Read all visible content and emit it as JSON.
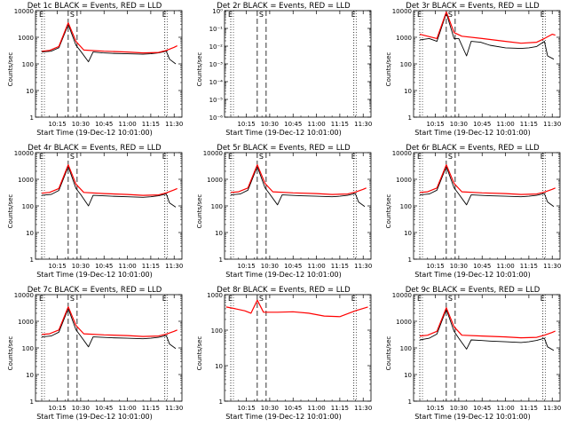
{
  "chart_data": [
    {
      "type": "line",
      "title": "Det 1c BLACK = Events, RED = LLD",
      "xlabel": "Start Time (19-Dec-12 10:01:00)",
      "ylabel": "Counts/sec",
      "yscale": "log",
      "ylim": [
        1,
        10000
      ],
      "ytick_labels": [
        "1",
        "10",
        "100",
        "1000",
        "10000"
      ],
      "xtick_labels": [
        "10:15",
        "10:30",
        "10:45",
        "11:00",
        "11:15",
        "11:30"
      ],
      "markers": [
        {
          "label": "E",
          "time": "10:05"
        },
        {
          "label": "S",
          "time": "10:22"
        },
        {
          "label": "E",
          "time": "11:24"
        }
      ],
      "series": [
        {
          "name": "Events",
          "color": "#000000",
          "x": [
            "10:05",
            "10:11",
            "10:16",
            "10:22",
            "10:27",
            "10:30",
            "10:35",
            "10:38",
            "10:44",
            "10:50",
            "11:00",
            "11:10",
            "11:15",
            "11:20",
            "11:25",
            "11:27",
            "11:31"
          ],
          "y": [
            280,
            300,
            400,
            3000,
            500,
            300,
            120,
            280,
            260,
            250,
            240,
            230,
            240,
            260,
            300,
            150,
            100
          ]
        },
        {
          "name": "LLD",
          "color": "#ff0000",
          "x": [
            "10:05",
            "10:10",
            "10:16",
            "10:22",
            "10:27",
            "10:32",
            "10:45",
            "11:00",
            "11:10",
            "11:20",
            "11:25",
            "11:30",
            "11:32"
          ],
          "y": [
            300,
            320,
            450,
            3500,
            700,
            330,
            300,
            280,
            260,
            270,
            320,
            420,
            480
          ]
        }
      ]
    },
    {
      "type": "line",
      "title": "Det 2r BLACK = Events, RED = LLD",
      "xlabel": "Start Time (19-Dec-12 10:01:00)",
      "ylabel": "Counts/sec",
      "yscale": "log",
      "ylim": [
        1e-06,
        1
      ],
      "ytick_labels": [
        "10⁻⁶",
        "10⁻⁵",
        "10⁻⁴",
        "10⁻³",
        "10⁻²",
        "10⁻¹",
        "10⁰"
      ],
      "xtick_labels": [
        "10:15",
        "10:30",
        "10:45",
        "11:00",
        "11:15",
        "11:30"
      ],
      "markers": [
        {
          "label": "E",
          "time": "10:05"
        },
        {
          "label": "S",
          "time": "10:22"
        },
        {
          "label": "E",
          "time": "11:24"
        }
      ],
      "series": []
    },
    {
      "type": "line",
      "title": "Det 3r BLACK = Events, RED = LLD",
      "xlabel": "Start Time (19-Dec-12 10:01:00)",
      "ylabel": "Counts/sec",
      "yscale": "log",
      "ylim": [
        1,
        10000
      ],
      "ytick_labels": [
        "1",
        "10",
        "100",
        "1000",
        "10000"
      ],
      "xtick_labels": [
        "10:15",
        "10:30",
        "10:45",
        "11:00",
        "11:15",
        "11:30"
      ],
      "markers": [
        {
          "label": "E",
          "time": "10:05"
        },
        {
          "label": "S",
          "time": "10:22"
        },
        {
          "label": "E",
          "time": "11:24"
        }
      ],
      "series": [
        {
          "name": "Events",
          "color": "#000000",
          "x": [
            "10:05",
            "10:11",
            "10:16",
            "10:22",
            "10:27",
            "10:30",
            "10:35",
            "10:38",
            "10:44",
            "10:50",
            "11:00",
            "11:10",
            "11:15",
            "11:20",
            "11:25",
            "11:27",
            "11:31"
          ],
          "y": [
            800,
            900,
            700,
            8000,
            900,
            900,
            200,
            700,
            650,
            500,
            400,
            380,
            400,
            450,
            700,
            200,
            150
          ]
        },
        {
          "name": "LLD",
          "color": "#ff0000",
          "x": [
            "10:05",
            "10:10",
            "10:16",
            "10:22",
            "10:27",
            "10:32",
            "10:45",
            "11:00",
            "11:10",
            "11:20",
            "11:25",
            "11:30",
            "11:32"
          ],
          "y": [
            1300,
            1100,
            900,
            9000,
            1500,
            1100,
            900,
            700,
            600,
            650,
            900,
            1300,
            1200
          ]
        }
      ]
    },
    {
      "type": "line",
      "title": "Det 4r BLACK = Events, RED = LLD",
      "xlabel": "Start Time (19-Dec-12 10:01:00)",
      "ylabel": "Counts/sec",
      "yscale": "log",
      "ylim": [
        1,
        10000
      ],
      "ytick_labels": [
        "1",
        "10",
        "100",
        "1000",
        "10000"
      ],
      "xtick_labels": [
        "10:15",
        "10:30",
        "10:45",
        "11:00",
        "11:15",
        "11:30"
      ],
      "markers": [
        {
          "label": "E",
          "time": "10:05"
        },
        {
          "label": "S",
          "time": "10:22"
        },
        {
          "label": "E",
          "time": "11:24"
        }
      ],
      "series": [
        {
          "name": "Events",
          "color": "#000000",
          "x": [
            "10:05",
            "10:11",
            "10:16",
            "10:22",
            "10:27",
            "10:30",
            "10:35",
            "10:38",
            "10:44",
            "10:50",
            "11:00",
            "11:10",
            "11:15",
            "11:20",
            "11:25",
            "11:27",
            "11:31"
          ],
          "y": [
            250,
            270,
            380,
            3000,
            450,
            270,
            100,
            250,
            240,
            230,
            220,
            210,
            220,
            240,
            280,
            130,
            90
          ]
        },
        {
          "name": "LLD",
          "color": "#ff0000",
          "x": [
            "10:05",
            "10:10",
            "10:16",
            "10:22",
            "10:27",
            "10:32",
            "10:45",
            "11:00",
            "11:10",
            "11:20",
            "11:25",
            "11:30",
            "11:32"
          ],
          "y": [
            300,
            320,
            450,
            3500,
            650,
            320,
            290,
            270,
            250,
            260,
            310,
            400,
            450
          ]
        }
      ]
    },
    {
      "type": "line",
      "title": "Det 5r BLACK = Events, RED = LLD",
      "xlabel": "Start Time (19-Dec-12 10:01:00)",
      "ylabel": "Counts/sec",
      "yscale": "log",
      "ylim": [
        1,
        10000
      ],
      "ytick_labels": [
        "1",
        "10",
        "100",
        "1000",
        "10000"
      ],
      "xtick_labels": [
        "10:15",
        "10:30",
        "10:45",
        "11:00",
        "11:15",
        "11:30"
      ],
      "markers": [
        {
          "label": "E",
          "time": "10:05"
        },
        {
          "label": "S",
          "time": "10:22"
        },
        {
          "label": "E",
          "time": "11:24"
        }
      ],
      "series": [
        {
          "name": "Events",
          "color": "#000000",
          "x": [
            "10:05",
            "10:11",
            "10:16",
            "10:22",
            "10:27",
            "10:30",
            "10:35",
            "10:38",
            "10:44",
            "10:50",
            "11:00",
            "11:10",
            "11:15",
            "11:20",
            "11:25",
            "11:27",
            "11:31"
          ],
          "y": [
            260,
            280,
            390,
            3000,
            480,
            280,
            110,
            260,
            250,
            240,
            230,
            220,
            230,
            250,
            290,
            140,
            95
          ]
        },
        {
          "name": "LLD",
          "color": "#ff0000",
          "x": [
            "10:05",
            "10:10",
            "10:16",
            "10:22",
            "10:27",
            "10:32",
            "10:45",
            "11:00",
            "11:10",
            "11:20",
            "11:25",
            "11:30",
            "11:32"
          ],
          "y": [
            320,
            340,
            470,
            3500,
            700,
            340,
            310,
            290,
            270,
            280,
            330,
            420,
            470
          ]
        }
      ]
    },
    {
      "type": "line",
      "title": "Det 6r BLACK = Events, RED = LLD",
      "xlabel": "Start Time (19-Dec-12 10:01:00)",
      "ylabel": "Counts/sec",
      "yscale": "log",
      "ylim": [
        1,
        10000
      ],
      "ytick_labels": [
        "1",
        "10",
        "100",
        "1000",
        "10000"
      ],
      "xtick_labels": [
        "10:15",
        "10:30",
        "10:45",
        "11:00",
        "11:15",
        "11:30"
      ],
      "markers": [
        {
          "label": "E",
          "time": "10:05"
        },
        {
          "label": "S",
          "time": "10:22"
        },
        {
          "label": "E",
          "time": "11:24"
        }
      ],
      "series": [
        {
          "name": "Events",
          "color": "#000000",
          "x": [
            "10:05",
            "10:11",
            "10:16",
            "10:22",
            "10:27",
            "10:30",
            "10:35",
            "10:38",
            "10:44",
            "10:50",
            "11:00",
            "11:10",
            "11:15",
            "11:20",
            "11:25",
            "11:27",
            "11:31"
          ],
          "y": [
            260,
            280,
            390,
            3000,
            480,
            280,
            110,
            260,
            250,
            240,
            230,
            220,
            230,
            250,
            290,
            140,
            95
          ]
        },
        {
          "name": "LLD",
          "color": "#ff0000",
          "x": [
            "10:05",
            "10:10",
            "10:16",
            "10:22",
            "10:27",
            "10:32",
            "10:45",
            "11:00",
            "11:10",
            "11:20",
            "11:25",
            "11:30",
            "11:32"
          ],
          "y": [
            320,
            340,
            470,
            3500,
            700,
            340,
            310,
            290,
            270,
            280,
            330,
            420,
            470
          ]
        }
      ]
    },
    {
      "type": "line",
      "title": "Det 7c BLACK = Events, RED = LLD",
      "xlabel": "Start Time (19-Dec-12 10:01:00)",
      "ylabel": "Counts/sec",
      "yscale": "log",
      "ylim": [
        1,
        10000
      ],
      "ytick_labels": [
        "1",
        "10",
        "100",
        "1000",
        "10000"
      ],
      "xtick_labels": [
        "10:15",
        "10:30",
        "10:45",
        "11:00",
        "11:15",
        "11:30"
      ],
      "markers": [
        {
          "label": "E",
          "time": "10:05"
        },
        {
          "label": "S",
          "time": "10:22"
        },
        {
          "label": "E",
          "time": "11:24"
        }
      ],
      "series": [
        {
          "name": "Events",
          "color": "#000000",
          "x": [
            "10:05",
            "10:11",
            "10:16",
            "10:22",
            "10:27",
            "10:30",
            "10:35",
            "10:38",
            "10:44",
            "10:50",
            "11:00",
            "11:10",
            "11:15",
            "11:20",
            "11:25",
            "11:27",
            "11:31"
          ],
          "y": [
            260,
            280,
            390,
            3000,
            480,
            280,
            110,
            260,
            250,
            240,
            230,
            220,
            230,
            250,
            290,
            140,
            95
          ]
        },
        {
          "name": "LLD",
          "color": "#ff0000",
          "x": [
            "10:05",
            "10:10",
            "10:16",
            "10:22",
            "10:27",
            "10:32",
            "10:45",
            "11:00",
            "11:10",
            "11:20",
            "11:25",
            "11:30",
            "11:32"
          ],
          "y": [
            320,
            340,
            470,
            3500,
            700,
            340,
            310,
            290,
            270,
            280,
            330,
            420,
            470
          ]
        }
      ]
    },
    {
      "type": "line",
      "title": "Det 8r BLACK = Events, RED = LLD",
      "xlabel": "Start Time (19-Dec-12 10:01:00)",
      "ylabel": "Counts/sec",
      "yscale": "log",
      "ylim": [
        1,
        1000
      ],
      "ytick_labels": [
        "1",
        "10",
        "100",
        "1000"
      ],
      "xtick_labels": [
        "10:15",
        "10:30",
        "10:45",
        "11:00",
        "11:15",
        "11:30"
      ],
      "markers": [
        {
          "label": "E",
          "time": "10:05"
        },
        {
          "label": "S",
          "time": "10:22"
        },
        {
          "label": "E",
          "time": "11:24"
        }
      ],
      "series": [
        {
          "name": "LLD",
          "color": "#ff0000",
          "x": [
            "10:02",
            "10:08",
            "10:14",
            "10:18",
            "10:22",
            "10:26",
            "10:35",
            "10:45",
            "10:55",
            "11:05",
            "11:15",
            "11:25",
            "11:33"
          ],
          "y": [
            450,
            400,
            350,
            300,
            700,
            320,
            320,
            330,
            300,
            250,
            240,
            350,
            450
          ]
        }
      ]
    },
    {
      "type": "line",
      "title": "Det 9c BLACK = Events, RED = LLD",
      "xlabel": "Start Time (19-Dec-12 10:01:00)",
      "ylabel": "Counts/sec",
      "yscale": "log",
      "ylim": [
        1,
        10000
      ],
      "ytick_labels": [
        "1",
        "10",
        "100",
        "1000",
        "10000"
      ],
      "xtick_labels": [
        "10:15",
        "10:30",
        "10:45",
        "11:00",
        "11:15",
        "11:30"
      ],
      "markers": [
        {
          "label": "E",
          "time": "10:05"
        },
        {
          "label": "S",
          "time": "10:22"
        },
        {
          "label": "E",
          "time": "11:24"
        }
      ],
      "series": [
        {
          "name": "Events",
          "color": "#000000",
          "x": [
            "10:05",
            "10:11",
            "10:16",
            "10:22",
            "10:27",
            "10:30",
            "10:35",
            "10:38",
            "10:44",
            "10:50",
            "11:00",
            "11:10",
            "11:15",
            "11:20",
            "11:25",
            "11:27",
            "11:31"
          ],
          "y": [
            200,
            230,
            330,
            2800,
            420,
            230,
            90,
            200,
            190,
            180,
            170,
            160,
            170,
            190,
            230,
            110,
            80
          ]
        },
        {
          "name": "LLD",
          "color": "#ff0000",
          "x": [
            "10:05",
            "10:10",
            "10:16",
            "10:22",
            "10:27",
            "10:32",
            "10:45",
            "11:00",
            "11:10",
            "11:20",
            "11:25",
            "11:30",
            "11:32"
          ],
          "y": [
            280,
            300,
            420,
            3200,
            620,
            300,
            280,
            260,
            240,
            250,
            300,
            380,
            430
          ]
        }
      ]
    }
  ]
}
